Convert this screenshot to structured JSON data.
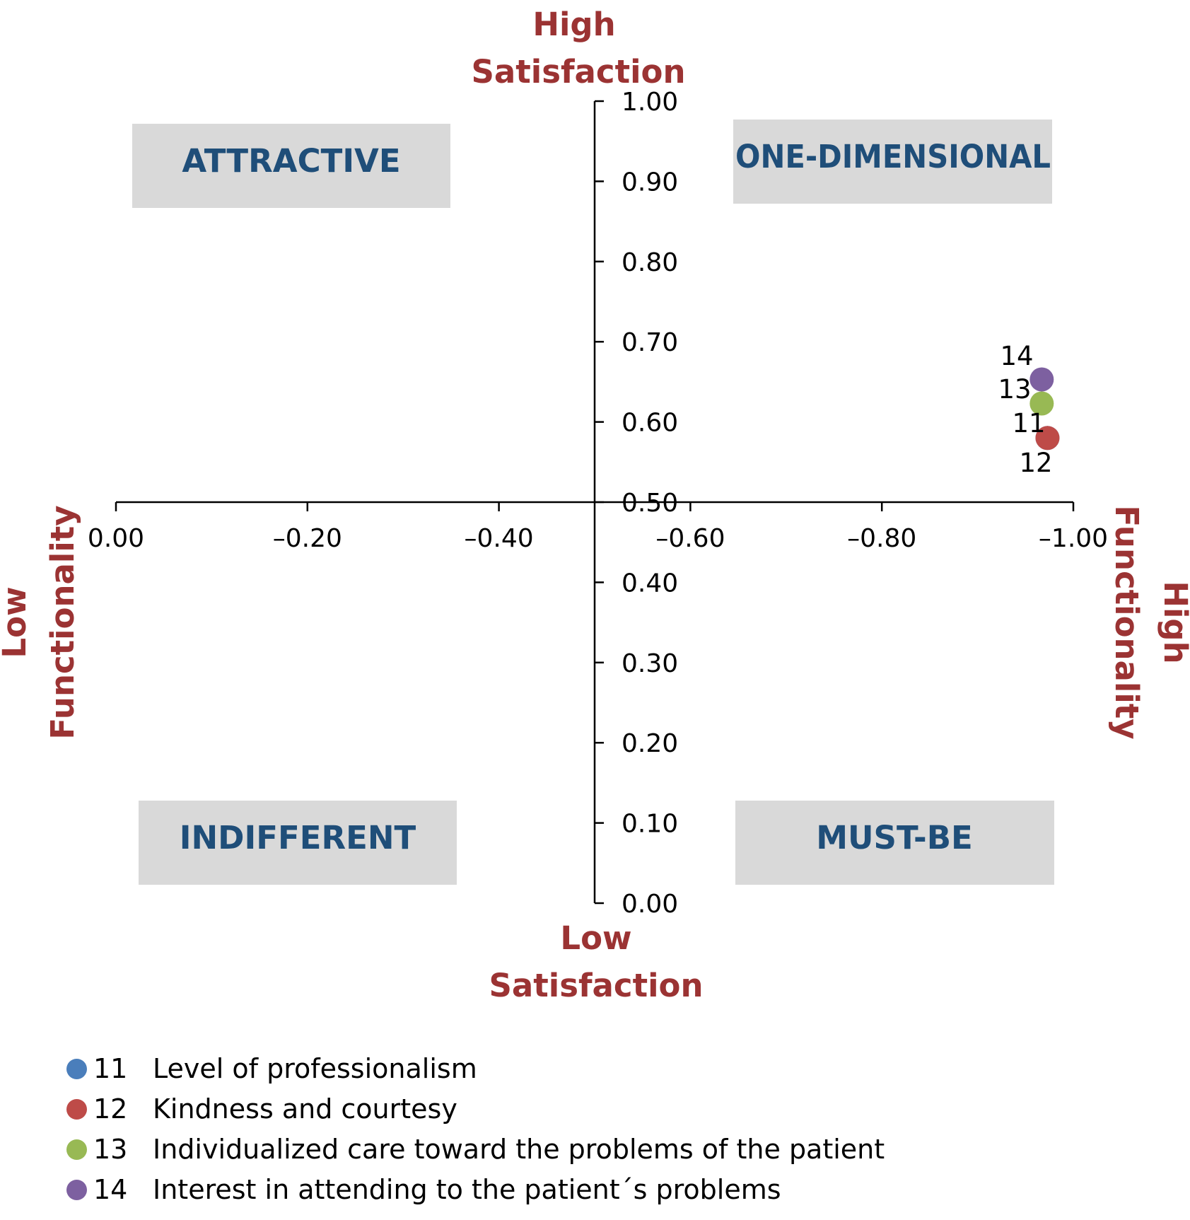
{
  "chart_data": {
    "type": "scatter",
    "x_axis": {
      "range": [
        0.0,
        -1.0
      ],
      "ticks": [
        0.0,
        -0.2,
        -0.4,
        -0.6,
        -0.8,
        -1.0
      ],
      "tick_labels": [
        "0.00",
        "–0.20",
        "–0.40",
        "–0.60",
        "–0.80",
        "–1.00"
      ]
    },
    "y_axis": {
      "range": [
        0.0,
        1.0
      ],
      "ticks": [
        0.0,
        0.1,
        0.2,
        0.3,
        0.4,
        0.5,
        0.6,
        0.7,
        0.8,
        0.9,
        1.0
      ],
      "tick_labels": [
        "0.00",
        "0.10",
        "0.20",
        "0.30",
        "0.40",
        "0.50",
        "0.60",
        "0.70",
        "0.80",
        "0.90",
        "1.00"
      ],
      "crosses_x_at": -0.5
    },
    "x_crosses_y_at": 0.5,
    "axis_direction_labels": {
      "top": [
        "High",
        "Satisfaction"
      ],
      "bottom": [
        "Low",
        "Satisfaction"
      ],
      "left": [
        "Low",
        "Functionality"
      ],
      "right": [
        "High",
        "Functionality"
      ]
    },
    "quadrant_labels": {
      "top_left": "ATTRACTIVE",
      "top_right": "ONE-DIMENSIONAL",
      "bottom_left": "INDIFFERENT",
      "bottom_right": "MUST-BE"
    },
    "series": [
      {
        "id": "11",
        "name": "Level of professionalism",
        "color": "#4a7ebb",
        "x": -0.973,
        "y": 0.58
      },
      {
        "id": "12",
        "name": "Kindness and courtesy",
        "color": "#be4b48",
        "x": -0.973,
        "y": 0.58
      },
      {
        "id": "13",
        "name": "Individualized care toward the problems of the patient",
        "color": "#98b954",
        "x": -0.967,
        "y": 0.623
      },
      {
        "id": "14",
        "name": "Interest in attending to the patient´s problems",
        "color": "#7d60a0",
        "x": -0.967,
        "y": 0.653
      }
    ],
    "legend_position": "bottom-left"
  }
}
